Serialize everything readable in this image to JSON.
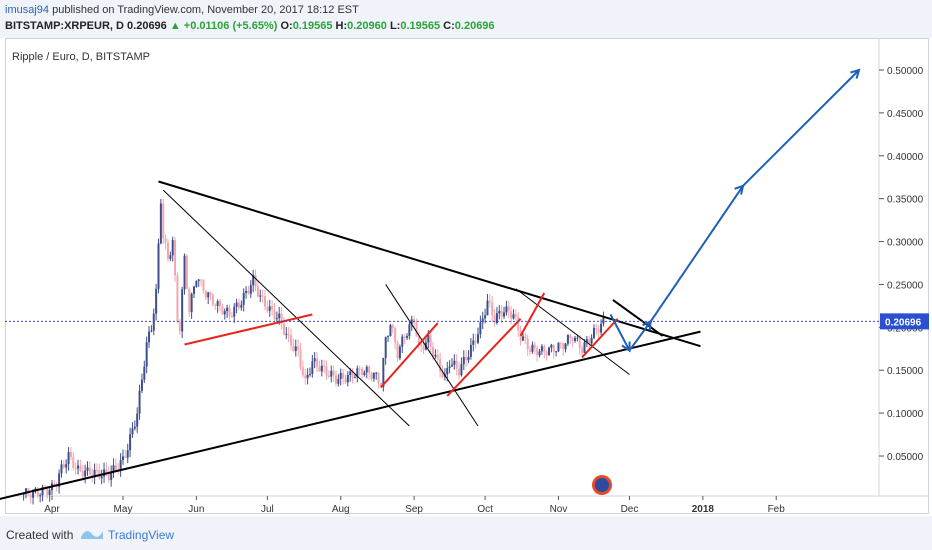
{
  "publish": {
    "user": "imusaj94",
    "text": "published on TradingView.com, November 20, 2017 18:12 EST"
  },
  "quote": {
    "symbol": "BITSTAMP:XRPEUR, D",
    "last": "0.20696",
    "change": "▲ +0.01106 (+5.65%)",
    "o_label": "O:",
    "o": "0.19565",
    "h_label": "H:",
    "h": "0.20960",
    "l_label": "L:",
    "l": "0.19565",
    "c_label": "C:",
    "c": "0.20696"
  },
  "chart_title": "Ripple / Euro, D, BITSTAMP",
  "footer": {
    "created": "Created with",
    "brand": "TradingView"
  },
  "colors": {
    "up": "#3d4f8a",
    "down": "#f2a6b0",
    "trend": "#000000",
    "red_line": "#e8251c",
    "projection": "#1e5fb8",
    "price_line": "#3b4cc0",
    "price_tag_bg": "#2b4fd1"
  },
  "chart_data": {
    "type": "candlestick",
    "title": "Ripple / Euro, D, BITSTAMP",
    "symbol": "XRPEUR",
    "x_ticks": [
      "Apr",
      "May",
      "Jun",
      "Jul",
      "Aug",
      "Sep",
      "Oct",
      "Nov",
      "Dec",
      "2018",
      "Feb"
    ],
    "y_ticks": [
      "0.05000",
      "0.10000",
      "0.15000",
      "0.20000",
      "0.25000",
      "0.30000",
      "0.35000",
      "0.40000",
      "0.45000",
      "0.50000"
    ],
    "ylim": [
      0.0,
      0.52
    ],
    "last_price_label": "0.20696",
    "last_price": 0.20696,
    "close_series": [
      {
        "date": "2017-03-20",
        "c": 0.006
      },
      {
        "date": "2017-03-27",
        "c": 0.008
      },
      {
        "date": "2017-04-01",
        "c": 0.012
      },
      {
        "date": "2017-04-03",
        "c": 0.02
      },
      {
        "date": "2017-04-05",
        "c": 0.035
      },
      {
        "date": "2017-04-08",
        "c": 0.05
      },
      {
        "date": "2017-04-12",
        "c": 0.033
      },
      {
        "date": "2017-04-18",
        "c": 0.03
      },
      {
        "date": "2017-04-25",
        "c": 0.028
      },
      {
        "date": "2017-04-28",
        "c": 0.036
      },
      {
        "date": "2017-05-01",
        "c": 0.045
      },
      {
        "date": "2017-05-03",
        "c": 0.06
      },
      {
        "date": "2017-05-05",
        "c": 0.08
      },
      {
        "date": "2017-05-07",
        "c": 0.1
      },
      {
        "date": "2017-05-09",
        "c": 0.14
      },
      {
        "date": "2017-05-11",
        "c": 0.18
      },
      {
        "date": "2017-05-13",
        "c": 0.2
      },
      {
        "date": "2017-05-15",
        "c": 0.24
      },
      {
        "date": "2017-05-17",
        "c": 0.35
      },
      {
        "date": "2017-05-18",
        "c": 0.305
      },
      {
        "date": "2017-05-20",
        "c": 0.28
      },
      {
        "date": "2017-05-22",
        "c": 0.3
      },
      {
        "date": "2017-05-24",
        "c": 0.21
      },
      {
        "date": "2017-05-25",
        "c": 0.2
      },
      {
        "date": "2017-05-27",
        "c": 0.28
      },
      {
        "date": "2017-05-29",
        "c": 0.22
      },
      {
        "date": "2017-06-01",
        "c": 0.26
      },
      {
        "date": "2017-06-05",
        "c": 0.24
      },
      {
        "date": "2017-06-10",
        "c": 0.225
      },
      {
        "date": "2017-06-15",
        "c": 0.215
      },
      {
        "date": "2017-06-20",
        "c": 0.23
      },
      {
        "date": "2017-06-25",
        "c": 0.255
      },
      {
        "date": "2017-06-28",
        "c": 0.235
      },
      {
        "date": "2017-07-02",
        "c": 0.22
      },
      {
        "date": "2017-07-06",
        "c": 0.21
      },
      {
        "date": "2017-07-10",
        "c": 0.185
      },
      {
        "date": "2017-07-14",
        "c": 0.17
      },
      {
        "date": "2017-07-17",
        "c": 0.135
      },
      {
        "date": "2017-07-20",
        "c": 0.16
      },
      {
        "date": "2017-07-25",
        "c": 0.15
      },
      {
        "date": "2017-07-30",
        "c": 0.14
      },
      {
        "date": "2017-08-04",
        "c": 0.142
      },
      {
        "date": "2017-08-10",
        "c": 0.15
      },
      {
        "date": "2017-08-15",
        "c": 0.145
      },
      {
        "date": "2017-08-18",
        "c": 0.135
      },
      {
        "date": "2017-08-20",
        "c": 0.185
      },
      {
        "date": "2017-08-22",
        "c": 0.205
      },
      {
        "date": "2017-08-25",
        "c": 0.17
      },
      {
        "date": "2017-08-28",
        "c": 0.19
      },
      {
        "date": "2017-09-01",
        "c": 0.21
      },
      {
        "date": "2017-09-03",
        "c": 0.175
      },
      {
        "date": "2017-09-07",
        "c": 0.185
      },
      {
        "date": "2017-09-10",
        "c": 0.165
      },
      {
        "date": "2017-09-14",
        "c": 0.14
      },
      {
        "date": "2017-09-16",
        "c": 0.16
      },
      {
        "date": "2017-09-20",
        "c": 0.15
      },
      {
        "date": "2017-09-25",
        "c": 0.175
      },
      {
        "date": "2017-09-29",
        "c": 0.2
      },
      {
        "date": "2017-10-02",
        "c": 0.23
      },
      {
        "date": "2017-10-05",
        "c": 0.21
      },
      {
        "date": "2017-10-09",
        "c": 0.22
      },
      {
        "date": "2017-10-13",
        "c": 0.215
      },
      {
        "date": "2017-10-16",
        "c": 0.19
      },
      {
        "date": "2017-10-20",
        "c": 0.175
      },
      {
        "date": "2017-10-25",
        "c": 0.172
      },
      {
        "date": "2017-10-30",
        "c": 0.175
      },
      {
        "date": "2017-11-03",
        "c": 0.18
      },
      {
        "date": "2017-11-07",
        "c": 0.19
      },
      {
        "date": "2017-11-11",
        "c": 0.175
      },
      {
        "date": "2017-11-15",
        "c": 0.19
      },
      {
        "date": "2017-11-18",
        "c": 0.2
      },
      {
        "date": "2017-11-20",
        "c": 0.20696
      }
    ],
    "annotations": {
      "trendlines": [
        "descending resistance from May high",
        "ascending support from March low"
      ],
      "projection": "dip to ~0.17 in early Dec then rise toward 0.50 by early Mar 2018"
    }
  }
}
